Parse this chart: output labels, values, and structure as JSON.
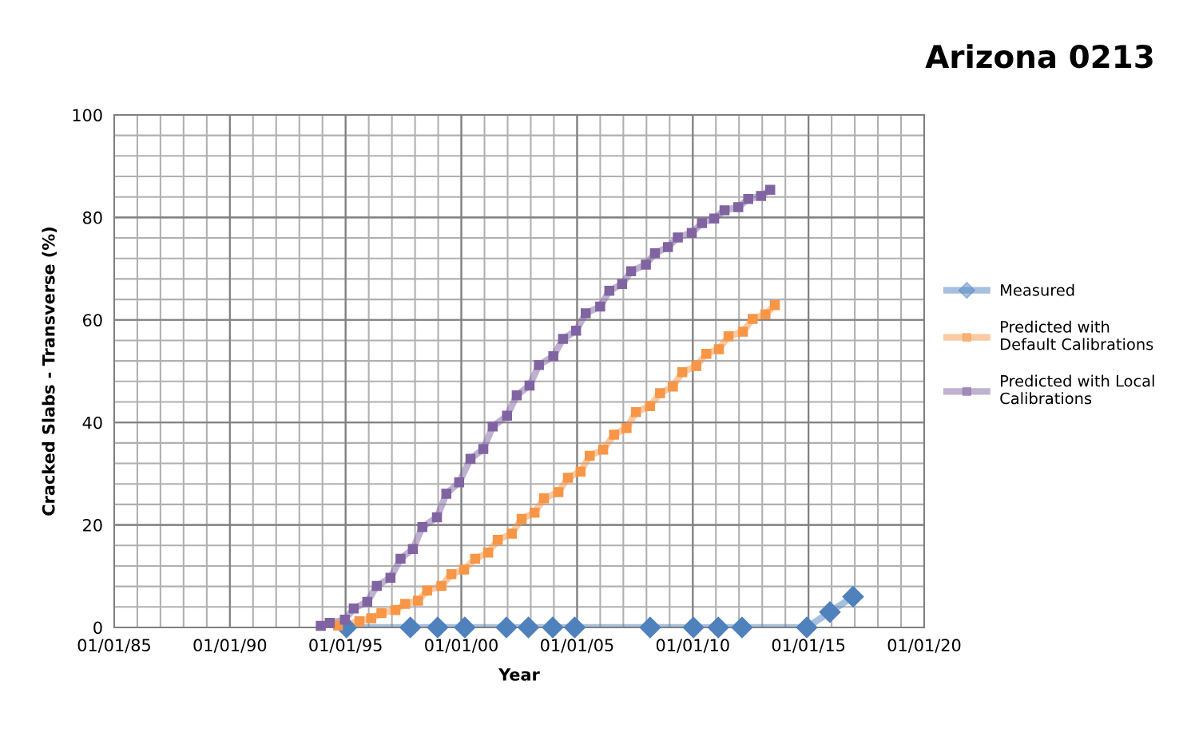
{
  "chart_data": {
    "type": "line",
    "title": "Arizona 0213",
    "xlabel": "Year",
    "ylabel": "Cracked Slabs - Transverse (%)",
    "xlim": [
      "1985-01-01",
      "2020-01-01"
    ],
    "xticks": [
      {
        "value": "1985-01-01",
        "label": "01/01/85"
      },
      {
        "value": "1986-01-01",
        "label": null
      },
      {
        "value": "1987-01-01",
        "label": null
      },
      {
        "value": "1988-01-01",
        "label": null
      },
      {
        "value": "1989-01-01",
        "label": null
      },
      {
        "value": "1990-01-01",
        "label": "01/01/90"
      },
      {
        "value": "1991-01-01",
        "label": null
      },
      {
        "value": "1992-01-01",
        "label": null
      },
      {
        "value": "1993-01-01",
        "label": null
      },
      {
        "value": "1994-01-01",
        "label": null
      },
      {
        "value": "1995-01-01",
        "label": "01/01/95"
      },
      {
        "value": "1996-01-01",
        "label": null
      },
      {
        "value": "1997-01-01",
        "label": null
      },
      {
        "value": "1998-01-01",
        "label": null
      },
      {
        "value": "1999-01-01",
        "label": null
      },
      {
        "value": "2000-01-01",
        "label": "01/01/00"
      },
      {
        "value": "2001-01-01",
        "label": null
      },
      {
        "value": "2002-01-01",
        "label": null
      },
      {
        "value": "2003-01-01",
        "label": null
      },
      {
        "value": "2004-01-01",
        "label": null
      },
      {
        "value": "2005-01-01",
        "label": "01/01/05"
      },
      {
        "value": "2006-01-01",
        "label": null
      },
      {
        "value": "2007-01-01",
        "label": null
      },
      {
        "value": "2008-01-01",
        "label": null
      },
      {
        "value": "2009-01-01",
        "label": null
      },
      {
        "value": "2010-01-01",
        "label": "01/01/10"
      },
      {
        "value": "2011-01-01",
        "label": null
      },
      {
        "value": "2012-01-01",
        "label": null
      },
      {
        "value": "2013-01-01",
        "label": null
      },
      {
        "value": "2014-01-01",
        "label": null
      },
      {
        "value": "2015-01-01",
        "label": "01/01/15"
      },
      {
        "value": "2016-01-01",
        "label": null
      },
      {
        "value": "2017-01-01",
        "label": null
      },
      {
        "value": "2018-01-01",
        "label": null
      },
      {
        "value": "2019-01-01",
        "label": null
      },
      {
        "value": "2020-01-01",
        "label": "01/01/20"
      }
    ],
    "ylim": [
      0,
      100
    ],
    "yticks": [
      0,
      {
        "value": 4,
        "label": null
      },
      {
        "value": 8,
        "label": null
      },
      {
        "value": 12,
        "label": null
      },
      {
        "value": 16,
        "label": null
      },
      20,
      {
        "value": 24,
        "label": null
      },
      {
        "value": 28,
        "label": null
      },
      {
        "value": 32,
        "label": null
      },
      {
        "value": 36,
        "label": null
      },
      40,
      {
        "value": 44,
        "label": null
      },
      {
        "value": 48,
        "label": null
      },
      {
        "value": 52,
        "label": null
      },
      {
        "value": 56,
        "label": null
      },
      60,
      {
        "value": 64,
        "label": null
      },
      {
        "value": 68,
        "label": null
      },
      {
        "value": 72,
        "label": null
      },
      {
        "value": 76,
        "label": null
      },
      80,
      {
        "value": 84,
        "label": null
      },
      {
        "value": 88,
        "label": null
      },
      {
        "value": 92,
        "label": null
      },
      {
        "value": 96,
        "label": null
      },
      100
    ],
    "grid": true,
    "legend": "right",
    "line_style": "solid",
    "series": [
      {
        "name": "Measured",
        "color": "#4f81bd",
        "marker": "diamond",
        "x": [
          "1995-01-15",
          "1997-10-19",
          "1998-12-23",
          "2000-02-25",
          "2001-12-13",
          "2002-11-25",
          "2003-12-13",
          "2004-11-25",
          "2008-02-28",
          "2010-01-11",
          "2011-02-07",
          "2012-02-17",
          "2014-12-05",
          "2015-12-05",
          "2016-12-05"
        ],
        "values": [
          0,
          0,
          0,
          0,
          0,
          0,
          0,
          0,
          0,
          0,
          0,
          0,
          0,
          3,
          6
        ]
      },
      {
        "name": "Predicted with Default Calibrations",
        "color": "#f79646",
        "marker": "square",
        "x": [
          "1994-09-02",
          "1995-08-07",
          "1996-02-10",
          "1996-07-19",
          "1997-02-25",
          "1997-07-29",
          "1998-02-17",
          "1998-07-11",
          "1999-02-21",
          "1999-07-29",
          "2000-02-14",
          "2000-08-07",
          "2001-02-28",
          "2001-07-29",
          "2002-03-09",
          "2002-08-10",
          "2003-03-02",
          "2003-07-29",
          "2004-03-13",
          "2004-08-10",
          "2005-02-25",
          "2005-07-19",
          "2006-02-17",
          "2006-08-07",
          "2007-02-21",
          "2007-07-19",
          "2008-02-25",
          "2008-08-03",
          "2009-02-21",
          "2009-07-19",
          "2010-02-25",
          "2010-08-03",
          "2011-02-17",
          "2011-07-19",
          "2012-03-02",
          "2012-08-03",
          "2013-02-21",
          "2013-07-19"
        ],
        "values": [
          0.4,
          1.2,
          1.8,
          2.8,
          3.4,
          4.6,
          5.2,
          7.2,
          8.1,
          10.4,
          11.3,
          13.4,
          14.6,
          17.1,
          18.3,
          21.2,
          22.4,
          25.2,
          26.4,
          29.2,
          30.4,
          33.5,
          34.7,
          37.6,
          38.9,
          42.0,
          43.2,
          45.7,
          47.0,
          49.8,
          51.0,
          53.4,
          54.3,
          56.8,
          57.7,
          60.2,
          61.1,
          62.9
        ]
      },
      {
        "name": "Predicted with Local Calibrations",
        "color": "#8064a2",
        "marker": "square",
        "x": [
          "1993-12-05",
          "1994-04-26",
          "1994-12-20",
          "1995-05-10",
          "1995-12-09",
          "1996-05-07",
          "1996-12-09",
          "1997-05-17",
          "1997-11-28",
          "1998-04-26",
          "1998-12-13",
          "1999-05-10",
          "1999-11-28",
          "2000-05-25",
          "2000-12-13",
          "2001-05-10",
          "2001-12-23",
          "2002-05-25",
          "2002-12-13",
          "2003-05-10",
          "2003-12-23",
          "2004-05-25",
          "2004-12-16",
          "2005-05-17",
          "2006-01-01",
          "2006-05-25",
          "2006-12-13",
          "2007-05-03",
          "2007-12-23",
          "2008-05-14",
          "2008-12-05",
          "2009-05-10",
          "2009-12-16",
          "2010-05-25",
          "2010-12-05",
          "2011-05-17",
          "2011-12-20",
          "2012-05-25",
          "2012-12-13",
          "2013-05-07"
        ],
        "values": [
          0.3,
          0.9,
          1.5,
          3.7,
          5.0,
          8.1,
          9.7,
          13.4,
          15.3,
          19.6,
          21.5,
          26.1,
          28.3,
          32.9,
          34.8,
          39.2,
          41.3,
          45.3,
          47.2,
          51.2,
          52.9,
          56.3,
          57.9,
          61.3,
          62.6,
          65.7,
          67.0,
          69.5,
          70.8,
          73.0,
          74.2,
          76.1,
          77.0,
          78.9,
          79.8,
          81.4,
          82.0,
          83.6,
          84.2,
          85.4
        ]
      }
    ]
  }
}
